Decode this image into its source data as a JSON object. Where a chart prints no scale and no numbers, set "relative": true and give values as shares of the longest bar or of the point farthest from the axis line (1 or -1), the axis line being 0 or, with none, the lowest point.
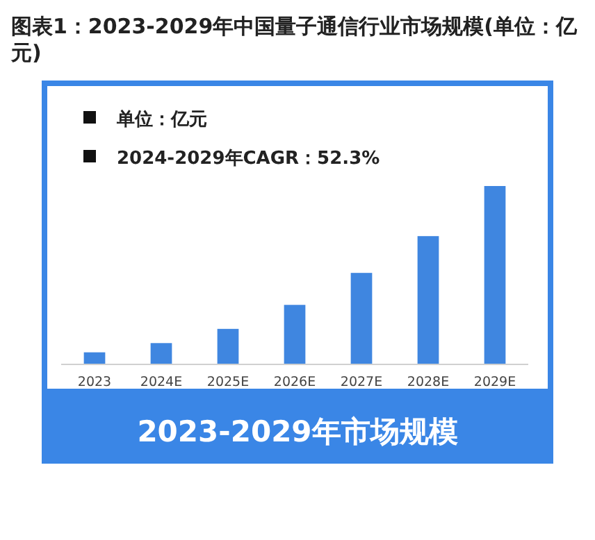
{
  "chart_data": {
    "type": "bar",
    "title": "图表1：2023-2029年中国量子通信行业市场规模(单位：亿元)",
    "categories": [
      "2023",
      "2024E",
      "2025E",
      "2026E",
      "2027E",
      "2028E",
      "2029E"
    ],
    "values": [
      0.064,
      0.116,
      0.196,
      0.331,
      0.511,
      0.718,
      1
    ],
    "color": "#3f86e0",
    "relative": true,
    "annotations": [
      "单位：亿元",
      "2024-2029年CAGR：52.3%",
      "2023-2029年市场规模"
    ]
  }
}
